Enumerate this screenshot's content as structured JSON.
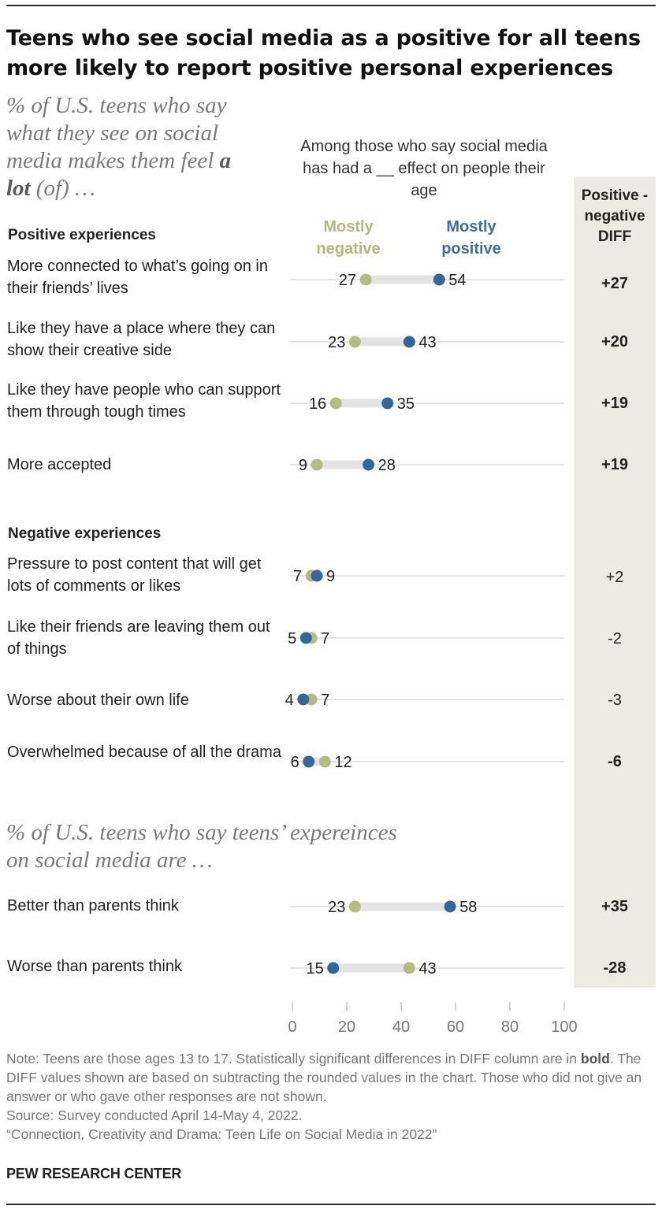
{
  "title": "Teens who see social media as a positive for all teens more likely to report positive personal experiences",
  "subtitle_pre": "% of U.S. teens who say what they see on social media makes them feel ",
  "subtitle_bold": "a lot",
  "subtitle_post": " (of) …",
  "column_header": "Among those who say social media has had a __ effect on people their age",
  "legend": {
    "negative": "Mostly negative",
    "positive": "Mostly positive"
  },
  "diff_header": "Positive - negative DIFF",
  "sections": {
    "positive": "Positive experiences",
    "negative": "Negative experiences"
  },
  "subtitle2": "% of U.S. teens who say teens’ expereinces on social media are …",
  "colors": {
    "negative": "#b5bb80",
    "positive": "#33679a",
    "bar": "#e3e3e3",
    "diff_panel": "#ecebe3"
  },
  "chart_data": {
    "type": "dot-plot",
    "xlim": [
      0,
      100
    ],
    "ticks": [
      "0",
      "20",
      "40",
      "60",
      "80",
      "100"
    ],
    "series": [
      {
        "name": "Mostly negative",
        "key": "negative"
      },
      {
        "name": "Mostly positive",
        "key": "positive"
      }
    ],
    "rows": [
      {
        "label": "More connected to what’s going on in their friends’ lives",
        "negative": 27,
        "positive": 54,
        "diff": "+27",
        "bold": true
      },
      {
        "label": "Like they have a place where they can show their creative side",
        "negative": 23,
        "positive": 43,
        "diff": "+20",
        "bold": true
      },
      {
        "label": "Like they have people who can support them through tough times",
        "negative": 16,
        "positive": 35,
        "diff": "+19",
        "bold": true
      },
      {
        "label": "More accepted",
        "negative": 9,
        "positive": 28,
        "diff": "+19",
        "bold": true
      },
      {
        "label": "Pressure to post content that will get lots of comments or likes",
        "negative": 7,
        "positive": 9,
        "diff": "+2",
        "bold": false
      },
      {
        "label": "Like their friends are leaving them out of things",
        "negative": 7,
        "positive": 5,
        "diff": "-2",
        "bold": false
      },
      {
        "label": "Worse about their own life",
        "negative": 7,
        "positive": 4,
        "diff": "-3",
        "bold": false
      },
      {
        "label": "Overwhelmed because of all the drama",
        "negative": 12,
        "positive": 6,
        "diff": "-6",
        "bold": true
      },
      {
        "label": "Better than parents think",
        "negative": 23,
        "positive": 58,
        "diff": "+35",
        "bold": true
      },
      {
        "label": "Worse than parents think",
        "negative": 43,
        "positive": 15,
        "diff": "-28",
        "bold": true
      }
    ]
  },
  "note_pre": "Note: Teens are those ages 13 to 17. Statistically significant differences in DIFF column are in ",
  "note_bold": "bold",
  "note_post": ". The DIFF values shown are based on subtracting the rounded values in the chart. Those who did not give an answer or who gave other responses are not shown.",
  "source": "Source: Survey conducted April 14-May 4, 2022.",
  "report": "“Connection, Creativity and Drama: Teen Life on Social Media in 2022”",
  "brand": "PEW RESEARCH CENTER"
}
